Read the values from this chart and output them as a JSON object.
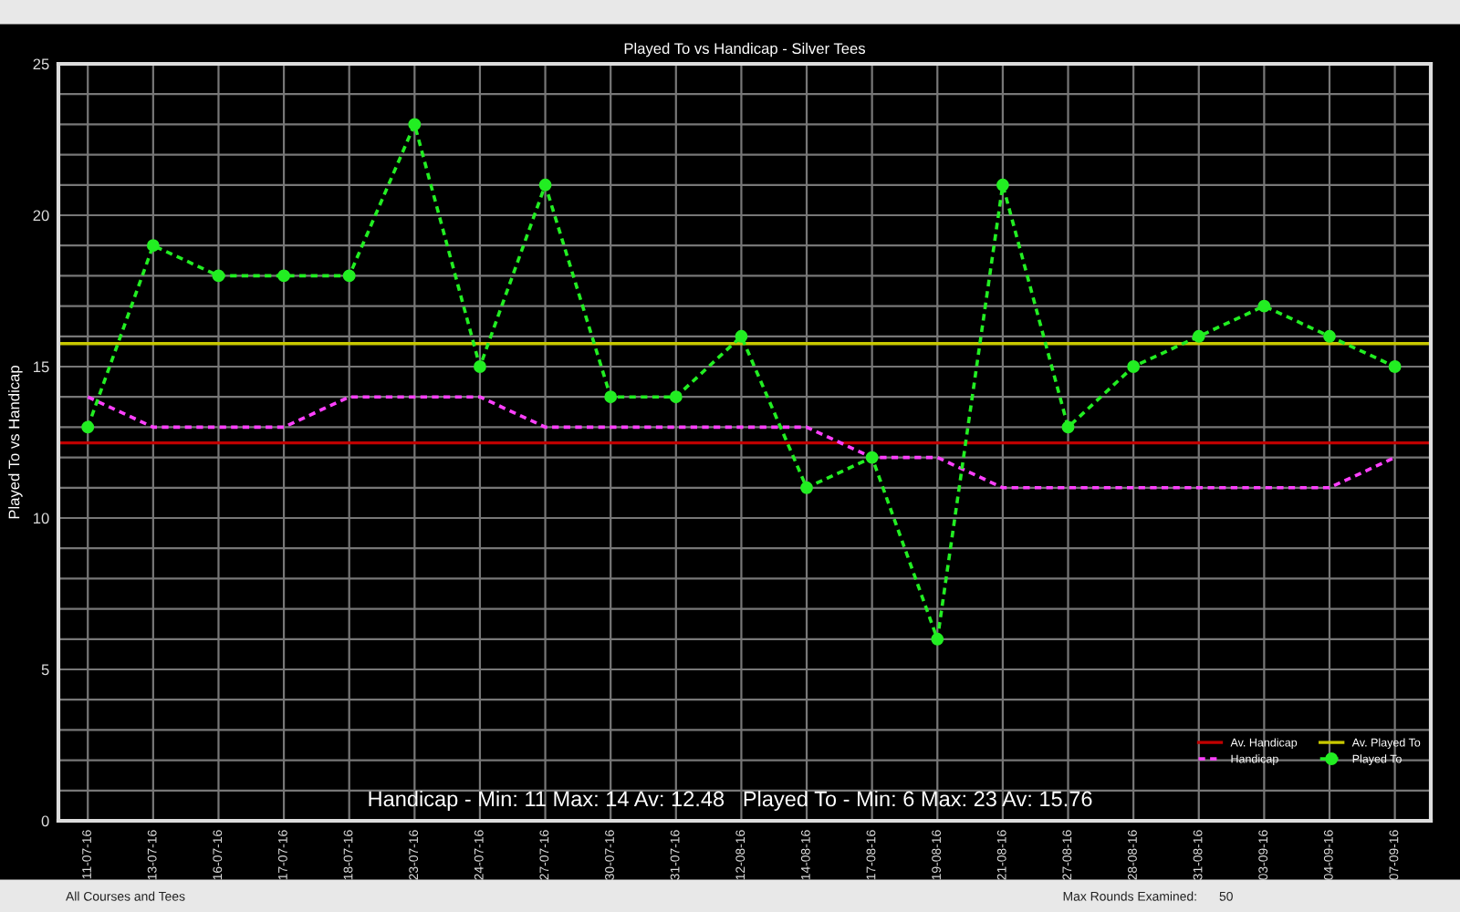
{
  "chart_data": {
    "type": "line",
    "title": "Played To vs Handicap - Silver Tees",
    "ylabel": "Played To vs Handicap",
    "categories": [
      "11-07-16",
      "13-07-16",
      "16-07-16",
      "17-07-16",
      "18-07-16",
      "23-07-16",
      "24-07-16",
      "27-07-16",
      "30-07-16",
      "31-07-16",
      "12-08-16",
      "14-08-16",
      "17-08-16",
      "19-08-16",
      "21-08-16",
      "27-08-16",
      "28-08-16",
      "31-08-16",
      "03-09-16",
      "04-09-16",
      "07-09-16"
    ],
    "series": [
      {
        "name": "Handicap",
        "color": "#ff40ff",
        "marker": "none",
        "line_style": "dashed",
        "values": [
          14,
          13,
          13,
          13,
          14,
          14,
          14,
          13,
          13,
          13,
          13,
          13,
          12,
          12,
          11,
          11,
          11,
          11,
          11,
          11,
          12
        ]
      },
      {
        "name": "Played To",
        "color": "#22ee22",
        "marker": "circle",
        "line_style": "dashed",
        "values": [
          13,
          19,
          18,
          18,
          18,
          23,
          15,
          21,
          14,
          14,
          16,
          11,
          12,
          6,
          21,
          13,
          15,
          16,
          17,
          16,
          15
        ]
      }
    ],
    "ref_lines": [
      {
        "axis": "y",
        "value": 12.48,
        "label": "Av. Handicap",
        "color": "#c00000",
        "line_style": "solid"
      },
      {
        "axis": "y",
        "value": 15.76,
        "label": "Av. Played To",
        "color": "#c8c800",
        "line_style": "solid"
      }
    ],
    "ylim": [
      0,
      25
    ],
    "yticks": [
      0,
      {
        "value": 1,
        "label": null
      },
      {
        "value": 2,
        "label": null
      },
      {
        "value": 3,
        "label": null
      },
      {
        "value": 4,
        "label": null
      },
      5,
      {
        "value": 6,
        "label": null
      },
      {
        "value": 7,
        "label": null
      },
      {
        "value": 8,
        "label": null
      },
      {
        "value": 9,
        "label": null
      },
      10,
      {
        "value": 11,
        "label": null
      },
      {
        "value": 12,
        "label": null
      },
      {
        "value": 13,
        "label": null
      },
      {
        "value": 14,
        "label": null
      },
      15,
      {
        "value": 16,
        "label": null
      },
      {
        "value": 17,
        "label": null
      },
      {
        "value": 18,
        "label": null
      },
      {
        "value": 19,
        "label": null
      },
      20,
      {
        "value": 21,
        "label": null
      },
      {
        "value": 22,
        "label": null
      },
      {
        "value": 23,
        "label": null
      },
      {
        "value": 24,
        "label": null
      },
      25
    ],
    "grid": true,
    "legend": "bottom right",
    "annotations": [
      "Handicap - Min: 11 Max: 14 Av: 12.48   Played To - Min: 6 Max: 23 Av: 15.76",
      "All Courses and Tees",
      "Max Rounds Examined:",
      "50"
    ]
  }
}
